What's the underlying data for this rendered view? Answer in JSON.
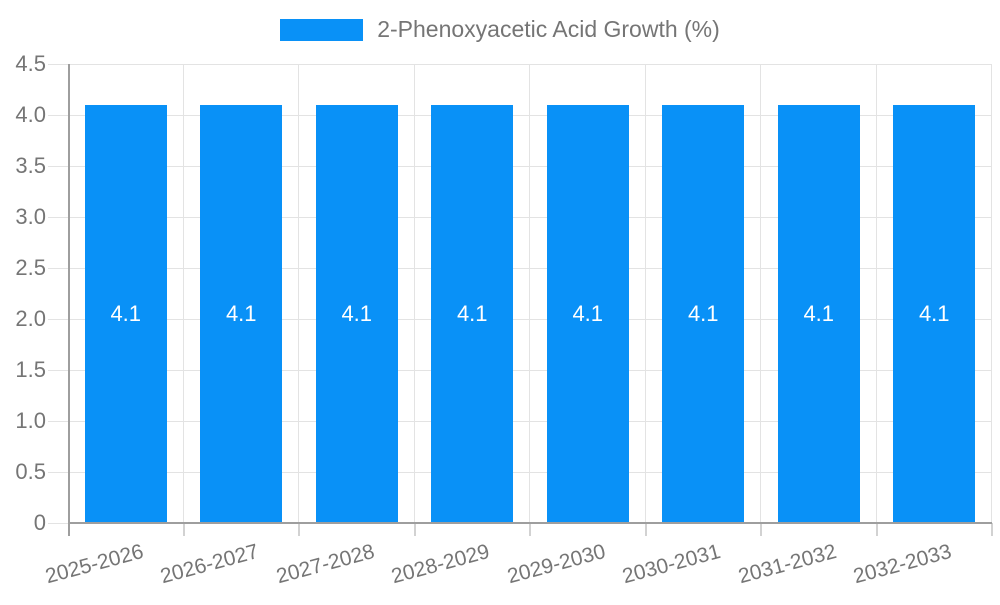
{
  "legend": {
    "label": "2-Phenoxyacetic Acid Growth (%)"
  },
  "chart_data": {
    "type": "bar",
    "title": "2-Phenoxyacetic Acid Growth (%)",
    "categories": [
      "2025-2026",
      "2026-2027",
      "2027-2028",
      "2028-2029",
      "2029-2030",
      "2030-2031",
      "2031-2032",
      "2032-2033"
    ],
    "values": [
      4.1,
      4.1,
      4.1,
      4.1,
      4.1,
      4.1,
      4.1,
      4.1
    ],
    "bar_value_labels": [
      "4.1",
      "4.1",
      "4.1",
      "4.1",
      "4.1",
      "4.1",
      "4.1",
      "4.1"
    ],
    "xlabel": "",
    "ylabel": "",
    "ylim": [
      0,
      4.5
    ],
    "yticks": [
      "4.5",
      "4.0",
      "3.5",
      "3.0",
      "2.5",
      "2.0",
      "1.5",
      "1.0",
      "0.5",
      "0"
    ],
    "grid": true,
    "legend_position": "top-center",
    "colors": {
      "bar": "#0991f7",
      "grid": "#e3e3e3",
      "axis": "#9e9e9e",
      "tick_label": "#757575",
      "value_label": "#ffffff"
    }
  }
}
